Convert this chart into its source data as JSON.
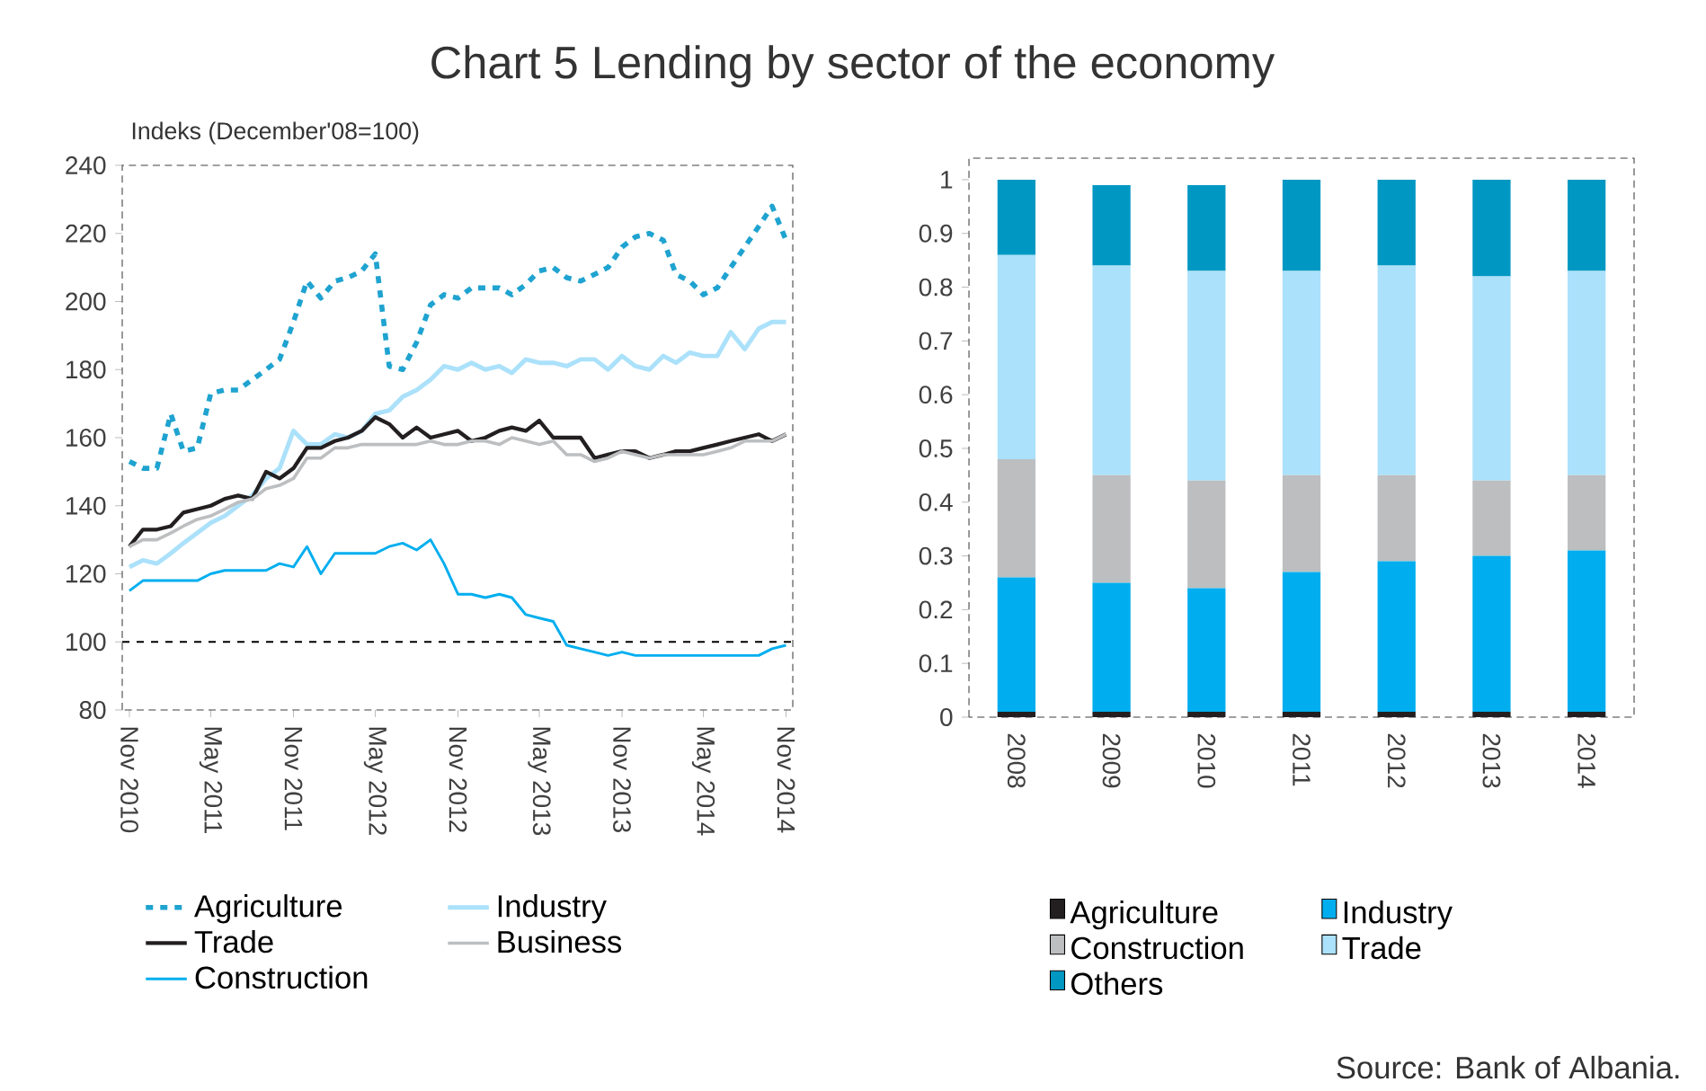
{
  "chart_data": [
    {
      "type": "line",
      "title": "Chart 5 Lending by sector of the economy",
      "ylabel": "Indeks (December'08=100)",
      "x": [
        "2010-11",
        "2010-12",
        "2011-01",
        "2011-02",
        "2011-03",
        "2011-04",
        "2011-05",
        "2011-06",
        "2011-07",
        "2011-08",
        "2011-09",
        "2011-10",
        "2011-11",
        "2011-12",
        "2012-01",
        "2012-02",
        "2012-03",
        "2012-04",
        "2012-05",
        "2012-06",
        "2012-07",
        "2012-08",
        "2012-09",
        "2012-10",
        "2012-11",
        "2012-12",
        "2013-01",
        "2013-02",
        "2013-03",
        "2013-04",
        "2013-05",
        "2013-06",
        "2013-07",
        "2013-08",
        "2013-09",
        "2013-10",
        "2013-11",
        "2013-12",
        "2014-01",
        "2014-02",
        "2014-03",
        "2014-04",
        "2014-05",
        "2014-06",
        "2014-07",
        "2014-08",
        "2014-09",
        "2014-10",
        "2014-11"
      ],
      "xlim": [
        "2010-10-16",
        "2014-11-16"
      ],
      "xticks": [
        {
          "value": "2010-11",
          "label": "Nov 2010"
        },
        {
          "value": "2011-05",
          "label": "May  2011"
        },
        {
          "value": "2011-11",
          "label": "Nov 2011"
        },
        {
          "value": "2012-05",
          "label": "May  2012"
        },
        {
          "value": "2012-11",
          "label": "Nov 2012"
        },
        {
          "value": "2013-05",
          "label": "May  2013"
        },
        {
          "value": "2013-11",
          "label": "Nov 2013"
        },
        {
          "value": "2014-05",
          "label": "May  2014"
        },
        {
          "value": "2014-11",
          "label": "Nov 2014"
        }
      ],
      "ylim": [
        80,
        240
      ],
      "yticks": [
        80,
        100,
        120,
        140,
        160,
        180,
        200,
        220,
        240
      ],
      "legend": "bottom",
      "ref_lines": [
        {
          "axis": "y",
          "value": 100,
          "color": "#000000",
          "line_style": "dashed"
        }
      ],
      "series": [
        {
          "name": "Agriculture",
          "color": "#1fa3d0",
          "line_style": "dashed",
          "values": [
            153,
            151,
            151,
            167,
            156,
            157,
            173,
            174,
            174,
            177,
            180,
            183,
            194,
            206,
            201,
            206,
            207,
            209,
            214,
            181,
            180,
            188,
            199,
            202,
            201,
            204,
            204,
            204,
            202,
            205,
            209,
            210,
            207,
            206,
            208,
            210,
            216,
            219,
            220,
            218,
            208,
            206,
            202,
            204,
            210,
            216,
            222,
            228,
            218
          ]
        },
        {
          "name": "Industry",
          "color": "#abe1fa",
          "values": [
            122,
            124,
            123,
            126,
            129,
            132,
            135,
            137,
            140,
            143,
            148,
            151,
            162,
            158,
            158,
            161,
            160,
            162,
            167,
            168,
            172,
            174,
            177,
            181,
            180,
            182,
            180,
            181,
            179,
            183,
            182,
            182,
            181,
            183,
            183,
            180,
            184,
            181,
            180,
            184,
            182,
            185,
            184,
            184,
            191,
            186,
            192,
            194,
            194
          ]
        },
        {
          "name": "Trade",
          "color": "#231f20",
          "values": [
            128,
            133,
            133,
            134,
            138,
            139,
            140,
            142,
            143,
            142,
            150,
            148,
            151,
            157,
            157,
            159,
            160,
            162,
            166,
            164,
            160,
            163,
            160,
            161,
            162,
            159,
            160,
            162,
            163,
            162,
            165,
            160,
            160,
            160,
            154,
            155,
            156,
            156,
            154,
            155,
            156,
            156,
            157,
            158,
            159,
            160,
            161,
            159,
            161
          ]
        },
        {
          "name": "Business",
          "color": "#bcbec0",
          "values": [
            128,
            130,
            130,
            132,
            134,
            136,
            137,
            139,
            141,
            142,
            145,
            146,
            148,
            154,
            154,
            157,
            157,
            158,
            158,
            158,
            158,
            158,
            159,
            158,
            158,
            159,
            159,
            158,
            160,
            159,
            158,
            159,
            155,
            155,
            153,
            154,
            156,
            155,
            154,
            155,
            155,
            155,
            155,
            156,
            157,
            159,
            159,
            159,
            161
          ]
        },
        {
          "name": "Construction",
          "color": "#00aeef",
          "values": [
            115,
            118,
            118,
            118,
            118,
            118,
            120,
            121,
            121,
            121,
            121,
            123,
            122,
            128,
            120,
            126,
            126,
            126,
            126,
            128,
            129,
            127,
            130,
            123,
            114,
            114,
            113,
            114,
            113,
            108,
            107,
            106,
            99,
            98,
            97,
            96,
            97,
            96,
            96,
            96,
            96,
            96,
            96,
            96,
            96,
            96,
            96,
            98,
            99
          ]
        }
      ]
    },
    {
      "type": "bar",
      "stacked": true,
      "categories": [
        "2008",
        "2009",
        "2010",
        "2011",
        "2012",
        "2013",
        "2014"
      ],
      "ylim": [
        0,
        1.04
      ],
      "yticks": [
        0,
        0.1,
        0.2,
        0.3,
        0.4,
        0.5,
        0.6,
        0.7,
        0.8,
        0.9,
        1
      ],
      "legend": "bottom",
      "annotations": [
        "Source: Bank of Albania."
      ],
      "series": [
        {
          "name": "Agriculture",
          "color": "#231f20",
          "values": [
            0.01,
            0.01,
            0.01,
            0.01,
            0.01,
            0.01,
            0.01
          ]
        },
        {
          "name": "Industry",
          "color": "#00aeef",
          "values": [
            0.25,
            0.24,
            0.23,
            0.26,
            0.28,
            0.29,
            0.3
          ]
        },
        {
          "name": "Construction",
          "color": "#bcbec0",
          "values": [
            0.22,
            0.2,
            0.2,
            0.18,
            0.16,
            0.14,
            0.14
          ]
        },
        {
          "name": "Trade",
          "color": "#abe1fa",
          "values": [
            0.38,
            0.39,
            0.39,
            0.38,
            0.39,
            0.38,
            0.38
          ]
        },
        {
          "name": "Others",
          "color": "#0098c3",
          "values": [
            0.14,
            0.15,
            0.16,
            0.17,
            0.16,
            0.18,
            0.17
          ]
        }
      ]
    }
  ]
}
